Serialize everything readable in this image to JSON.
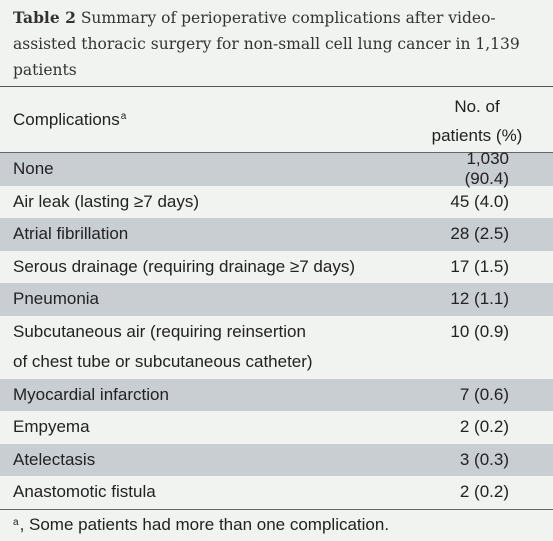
{
  "caption": {
    "label": "Table 2",
    "text": "Summary of perioperative complications after video-assisted thoracic surgery for non-small cell lung cancer in 1,139 patients"
  },
  "header": {
    "col1": "Complications",
    "col1_sup": "a",
    "col2_line1": "No. of",
    "col2_line2": "patients (%)"
  },
  "rows": [
    {
      "name": "None",
      "value": "1,030 (90.4)"
    },
    {
      "name": "Air leak (lasting ≥7 days)",
      "value": "45 (4.0)"
    },
    {
      "name": "Atrial fibrillation",
      "value": "28 (2.5)"
    },
    {
      "name": "Serous drainage (requiring drainage ≥7 days)",
      "value": "17 (1.5)"
    },
    {
      "name": "Pneumonia",
      "value": "12 (1.1)"
    },
    {
      "name_line1": "Subcutaneous air (requiring reinsertion",
      "name_line2": "of chest tube or subcutaneous catheter)",
      "value": "10 (0.9)"
    },
    {
      "name": "Myocardial infarction",
      "value": "7 (0.6)"
    },
    {
      "name": "Empyema",
      "value": "2 (0.2)"
    },
    {
      "name": "Atelectasis",
      "value": "3 (0.3)"
    },
    {
      "name": "Anastomotic fistula",
      "value": "2 (0.2)"
    }
  ],
  "footnote": {
    "sup": "a",
    "text": ", Some patients had more than one complication."
  }
}
